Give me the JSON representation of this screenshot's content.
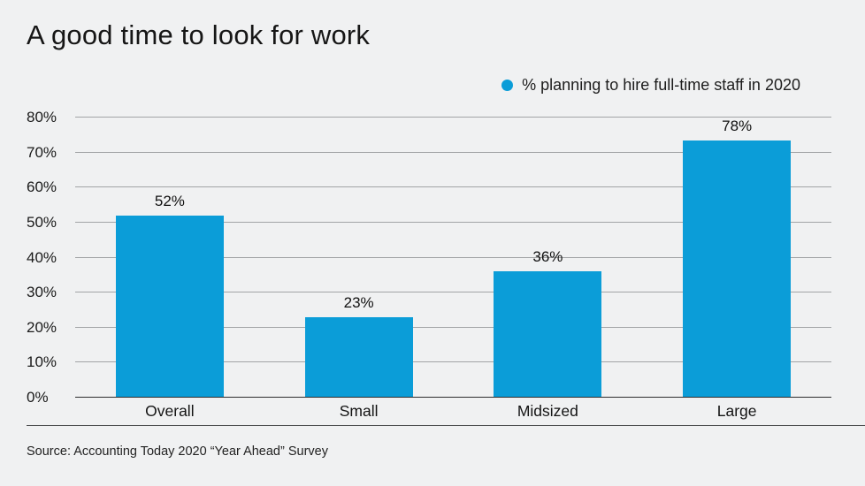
{
  "chart_data": {
    "type": "bar",
    "title": "A good time to look for work",
    "legend": [
      {
        "label": "% planning to hire full-time staff in 2020",
        "color": "#0b9dd8"
      }
    ],
    "legend_position": "top-right",
    "categories": [
      "Overall",
      "Small",
      "Midsized",
      "Large"
    ],
    "values": [
      52,
      23,
      36,
      78
    ],
    "value_labels": [
      "52%",
      "23%",
      "36%",
      "78%"
    ],
    "xlabel": "",
    "ylabel": "",
    "ylim": [
      0,
      80
    ],
    "yticks": [
      0,
      10,
      20,
      30,
      40,
      50,
      60,
      70,
      80
    ],
    "ytick_labels": [
      "0%",
      "10%",
      "20%",
      "30%",
      "40%",
      "50%",
      "60%",
      "70%",
      "80%"
    ],
    "grid": true,
    "source": "Source: Accounting Today 2020 “Year Ahead” Survey"
  },
  "colors": {
    "background": "#f0f1f2",
    "bar": "#0b9dd8",
    "gridline": "#a2a4a6",
    "axis_line": "#2e2e2e"
  }
}
